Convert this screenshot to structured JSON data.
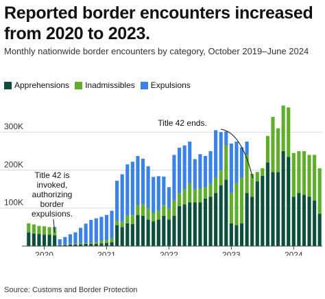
{
  "title": "Reported border encounters increased from 2020 to 2023.",
  "subtitle": "Monthly nationwide border encounters by category, October 2019–June 2024",
  "source": "Source: Customs and Border Protection",
  "colors": {
    "apprehensions": "#0d4f3c",
    "inadmissibles": "#5fad2b",
    "expulsions": "#3b82e6"
  },
  "chart_data": {
    "type": "bar",
    "stacked": true,
    "categories": [
      "2019-10",
      "2019-11",
      "2019-12",
      "2020-01",
      "2020-02",
      "2020-03",
      "2020-04",
      "2020-05",
      "2020-06",
      "2020-07",
      "2020-08",
      "2020-09",
      "2020-10",
      "2020-11",
      "2020-12",
      "2021-01",
      "2021-02",
      "2021-03",
      "2021-04",
      "2021-05",
      "2021-06",
      "2021-07",
      "2021-08",
      "2021-09",
      "2021-10",
      "2021-11",
      "2021-12",
      "2022-01",
      "2022-02",
      "2022-03",
      "2022-04",
      "2022-05",
      "2022-06",
      "2022-07",
      "2022-08",
      "2022-09",
      "2022-10",
      "2022-11",
      "2022-12",
      "2023-01",
      "2023-02",
      "2023-03",
      "2023-04",
      "2023-05",
      "2023-06",
      "2023-07",
      "2023-08",
      "2023-09",
      "2023-10",
      "2023-11",
      "2023-12",
      "2024-01",
      "2024-02",
      "2024-03",
      "2024-04",
      "2024-05",
      "2024-06"
    ],
    "series": [
      {
        "name": "Apprehensions",
        "values": [
          36,
          33,
          32,
          30,
          30,
          28,
          2,
          3,
          4,
          4,
          5,
          6,
          6,
          6,
          7,
          8,
          10,
          55,
          50,
          60,
          58,
          82,
          80,
          70,
          65,
          70,
          80,
          70,
          80,
          105,
          110,
          115,
          115,
          115,
          125,
          130,
          140,
          160,
          175,
          60,
          55,
          60,
          140,
          130,
          170,
          185,
          220,
          195,
          195,
          250,
          235,
          130,
          140,
          135,
          130,
          120,
          85
        ]
      },
      {
        "name": "Inadmissibles",
        "values": [
          24,
          24,
          21,
          22,
          20,
          18,
          1,
          1,
          2,
          2,
          3,
          3,
          3,
          5,
          7,
          8,
          11,
          12,
          14,
          20,
          24,
          25,
          30,
          30,
          22,
          24,
          28,
          30,
          40,
          34,
          40,
          50,
          34,
          37,
          30,
          34,
          40,
          40,
          90,
          80,
          110,
          120,
          100,
          60,
          25,
          20,
          70,
          145,
          115,
          120,
          130,
          115,
          110,
          115,
          110,
          120,
          120
        ]
      },
      {
        "name": "Expulsions",
        "values": [
          0,
          0,
          0,
          0,
          0,
          4,
          15,
          20,
          25,
          30,
          40,
          50,
          60,
          62,
          63,
          66,
          72,
          105,
          125,
          135,
          140,
          130,
          120,
          110,
          95,
          90,
          75,
          55,
          120,
          120,
          115,
          110,
          80,
          90,
          82,
          86,
          125,
          100,
          37,
          130,
          110,
          80,
          35,
          0,
          0,
          0,
          0,
          0,
          0,
          0,
          0,
          0,
          0,
          0,
          0,
          0,
          0
        ]
      }
    ],
    "y_unit": "thousands",
    "ylim": [
      0,
      380
    ],
    "yticks": [
      {
        "value": 100,
        "label": "100K"
      },
      {
        "value": 200,
        "label": "200K"
      },
      {
        "value": 300,
        "label": "300K"
      }
    ],
    "xticks": [
      {
        "label": "2020",
        "index": 3
      },
      {
        "label": "2021",
        "index": 15
      },
      {
        "label": "2022",
        "index": 27
      },
      {
        "label": "2023",
        "index": 39
      },
      {
        "label": "2024",
        "index": 51
      }
    ],
    "legend_position": "top-left",
    "annotations": [
      {
        "lines": [
          "Title 42 is",
          "invoked,",
          "authorizing",
          "border",
          "expulsions."
        ],
        "category": "2020-03"
      },
      {
        "lines": [
          "Title 42 ends."
        ],
        "category": "2023-05"
      }
    ]
  }
}
